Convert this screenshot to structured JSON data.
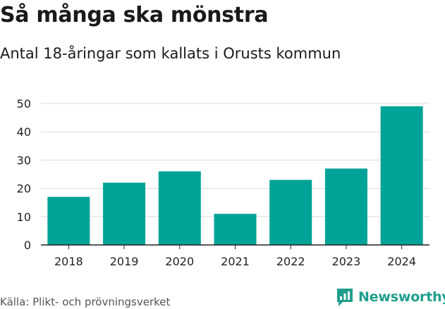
{
  "title": "Så många ska mönstra",
  "subtitle": "Antal 18-åringar som kallats i Orusts kommun",
  "source": "Källa: Plikt- och prövningsverket",
  "brand": {
    "name": "Newsworthy",
    "icon": "newsworthy-logo-icon"
  },
  "colors": {
    "bar": "#00a398",
    "brand": "#1f9e8d",
    "grid": "#dcdcdc",
    "axis": "#222222"
  },
  "chart_data": {
    "type": "bar",
    "categories": [
      "2018",
      "2019",
      "2020",
      "2021",
      "2022",
      "2023",
      "2024"
    ],
    "values": [
      17,
      22,
      26,
      11,
      23,
      27,
      49
    ],
    "ylim": [
      0,
      50
    ],
    "yticks": [
      "0",
      "10",
      "20",
      "30",
      "40",
      "50"
    ],
    "title": "Så många ska mönstra",
    "xlabel": "",
    "ylabel": "",
    "grid": true
  }
}
